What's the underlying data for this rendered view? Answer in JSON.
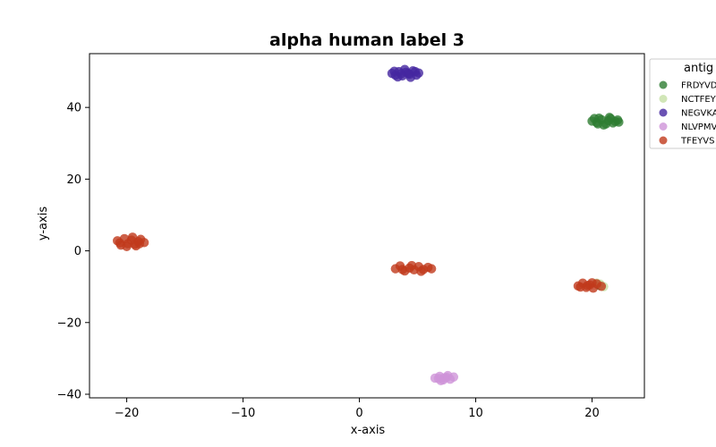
{
  "chart_data": {
    "type": "scatter",
    "title": "alpha human label 3",
    "xlabel": "x-axis",
    "ylabel": "y-axis",
    "xlim": [
      -23.2,
      24.5
    ],
    "ylim": [
      -41,
      55
    ],
    "xticks": [
      -20,
      -10,
      0,
      10,
      20
    ],
    "yticks": [
      -40,
      -20,
      0,
      20,
      40
    ],
    "xtick_labels": [
      "−20",
      "−10",
      "0",
      "10",
      "20"
    ],
    "ytick_labels": [
      "−40",
      "−20",
      "0",
      "20",
      "40"
    ],
    "grid": false,
    "legend": {
      "title": "antig",
      "placement": "outside-top-right"
    },
    "series": [
      {
        "name": "FRDYVD",
        "color": "#2e7d32",
        "points": [
          [
            20.0,
            36.2
          ],
          [
            20.4,
            35.8
          ],
          [
            20.8,
            36.6
          ],
          [
            21.2,
            35.4
          ],
          [
            21.6,
            36.9
          ],
          [
            22.0,
            36.1
          ],
          [
            20.6,
            37.0
          ],
          [
            21.4,
            36.3
          ],
          [
            21.8,
            35.7
          ],
          [
            20.2,
            36.9
          ],
          [
            21.0,
            35.1
          ],
          [
            22.2,
            36.5
          ],
          [
            20.5,
            35.4
          ],
          [
            21.5,
            37.2
          ],
          [
            22.3,
            35.9
          ],
          [
            20.6,
            -9.6
          ]
        ]
      },
      {
        "name": "NCTFEY",
        "color": "#c5e0a5",
        "points": [
          [
            20.7,
            -9.3
          ],
          [
            21.0,
            -10.0
          ],
          [
            20.4,
            -9.0
          ]
        ]
      },
      {
        "name": "NEGVKA",
        "color": "#4527a0",
        "points": [
          [
            2.8,
            49.5
          ],
          [
            3.1,
            49.0
          ],
          [
            3.4,
            50.0
          ],
          [
            3.7,
            48.8
          ],
          [
            4.0,
            49.8
          ],
          [
            4.3,
            49.2
          ],
          [
            4.6,
            50.2
          ],
          [
            4.9,
            49.0
          ],
          [
            5.1,
            49.6
          ],
          [
            3.3,
            48.5
          ],
          [
            3.9,
            50.6
          ],
          [
            4.4,
            48.4
          ],
          [
            3.6,
            49.4
          ],
          [
            4.8,
            50.0
          ],
          [
            3.0,
            50.1
          ],
          [
            4.2,
            49.5
          ]
        ]
      },
      {
        "name": "NLVPMV",
        "color": "#ce93d8",
        "points": [
          [
            6.5,
            -35.5
          ],
          [
            6.9,
            -35.0
          ],
          [
            7.2,
            -36.0
          ],
          [
            7.5,
            -35.3
          ],
          [
            7.8,
            -35.8
          ],
          [
            8.1,
            -35.2
          ],
          [
            7.0,
            -36.2
          ],
          [
            7.6,
            -34.8
          ],
          [
            6.8,
            -35.6
          ],
          [
            7.3,
            -35.4
          ]
        ]
      },
      {
        "name": "TFEYVS",
        "color": "#c0391b",
        "points": [
          [
            -20.8,
            2.8
          ],
          [
            -20.5,
            1.6
          ],
          [
            -20.2,
            3.4
          ],
          [
            -19.9,
            2.0
          ],
          [
            -19.6,
            3.0
          ],
          [
            -19.3,
            1.8
          ],
          [
            -19.0,
            2.6
          ],
          [
            -18.8,
            3.2
          ],
          [
            -18.5,
            2.3
          ],
          [
            -20.0,
            1.2
          ],
          [
            -19.5,
            3.8
          ],
          [
            -20.6,
            2.2
          ],
          [
            -19.2,
            1.4
          ],
          [
            -18.9,
            2.0
          ],
          [
            3.1,
            -5.0
          ],
          [
            3.5,
            -4.2
          ],
          [
            3.9,
            -5.6
          ],
          [
            4.3,
            -4.8
          ],
          [
            4.7,
            -5.3
          ],
          [
            5.1,
            -4.4
          ],
          [
            5.5,
            -5.2
          ],
          [
            5.9,
            -4.6
          ],
          [
            6.2,
            -5.0
          ],
          [
            4.5,
            -4.1
          ],
          [
            5.3,
            -5.7
          ],
          [
            3.7,
            -5.2
          ],
          [
            18.8,
            -9.8
          ],
          [
            19.2,
            -9.0
          ],
          [
            19.5,
            -10.2
          ],
          [
            19.8,
            -9.5
          ],
          [
            20.1,
            -10.4
          ],
          [
            20.4,
            -9.2
          ],
          [
            20.8,
            -9.9
          ],
          [
            19.0,
            -10.1
          ],
          [
            20.0,
            -8.9
          ],
          [
            19.6,
            -9.7
          ]
        ]
      }
    ]
  }
}
